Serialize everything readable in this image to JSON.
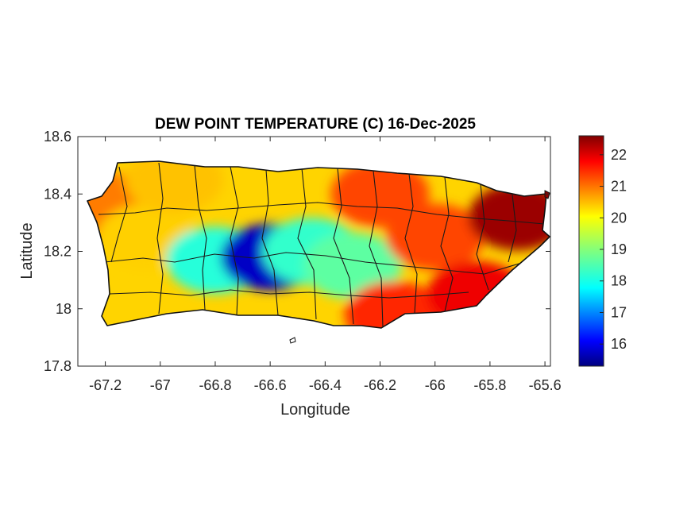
{
  "chart_data": {
    "type": "heatmap",
    "title": "DEW POINT TEMPERATURE (C) 16-Dec-2025",
    "xlabel": "Longitude",
    "ylabel": "Latitude",
    "xlim": [
      -67.3,
      -65.58
    ],
    "ylim": [
      17.8,
      18.6
    ],
    "x_ticks": [
      "-67.2",
      "-67",
      "-66.8",
      "-66.6",
      "-66.4",
      "-66.2",
      "-66",
      "-65.8",
      "-65.6"
    ],
    "y_ticks": [
      "17.8",
      "18",
      "18.2",
      "18.4",
      "18.6"
    ],
    "colorbar": {
      "colormap": "jet",
      "range": [
        15.3,
        22.6
      ],
      "ticks": [
        "16",
        "17",
        "18",
        "19",
        "20",
        "21",
        "22"
      ]
    },
    "field_samples": [
      {
        "lon": -67.2,
        "lat": 18.36,
        "value": 20.8
      },
      {
        "lon": -67.05,
        "lat": 18.25,
        "value": 20.2
      },
      {
        "lon": -66.95,
        "lat": 18.45,
        "value": 20.3
      },
      {
        "lon": -66.8,
        "lat": 18.17,
        "value": 18.3
      },
      {
        "lon": -66.6,
        "lat": 18.18,
        "value": 15.8
      },
      {
        "lon": -66.45,
        "lat": 18.2,
        "value": 18.4
      },
      {
        "lon": -66.3,
        "lat": 18.15,
        "value": 18.7
      },
      {
        "lon": -66.2,
        "lat": 18.4,
        "value": 21.2
      },
      {
        "lon": -66.15,
        "lat": 17.98,
        "value": 21.4
      },
      {
        "lon": -66.0,
        "lat": 18.25,
        "value": 21.2
      },
      {
        "lon": -65.85,
        "lat": 18.05,
        "value": 21.8
      },
      {
        "lon": -65.7,
        "lat": 18.32,
        "value": 22.4
      }
    ]
  }
}
